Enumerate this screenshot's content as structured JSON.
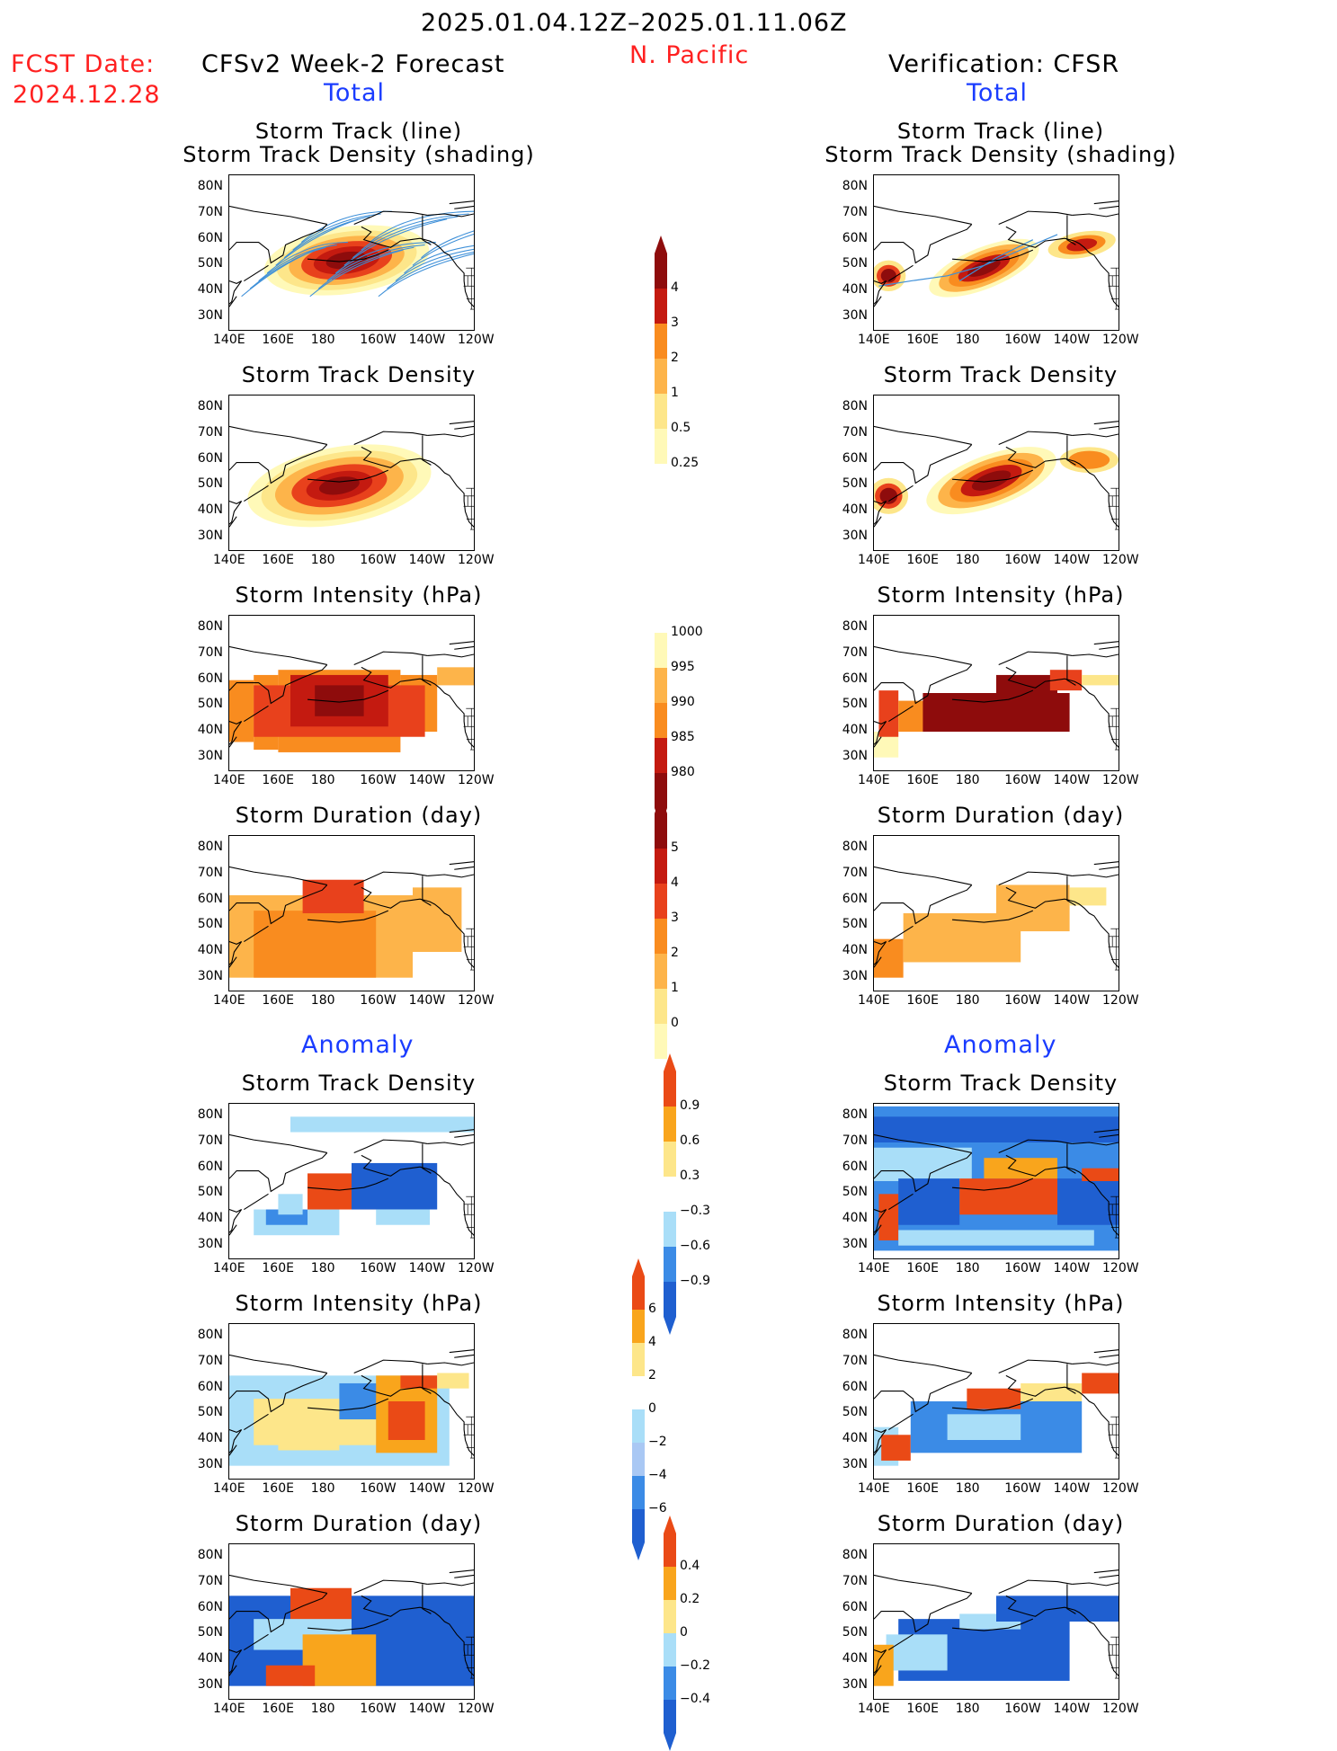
{
  "header": {
    "period": "2025.01.04.12Z–2025.01.11.06Z",
    "region": "N. Pacific",
    "fcst_label": "FCST Date:",
    "fcst_date": "2024.12.28",
    "left_title": "CFSv2 Week-2 Forecast",
    "right_title": "Verification: CFSR",
    "total_label": "Total",
    "anomaly_label": "Anomaly"
  },
  "panel_titles": {
    "track_1": "Storm Track (line)",
    "track_2": "Storm Track Density (shading)",
    "density": "Storm Track Density",
    "intensity": "Storm Intensity (hPa)",
    "duration": "Storm Duration (day)"
  },
  "axes": {
    "lat_labels": [
      "80N",
      "70N",
      "60N",
      "50N",
      "40N",
      "30N"
    ],
    "lon_labels": [
      "140E",
      "160E",
      "180",
      "160W",
      "140W",
      "120W"
    ]
  },
  "colorbars": {
    "density_total": [
      "4",
      "3",
      "2",
      "1",
      "0.5",
      "0.25"
    ],
    "intensity_total": [
      "1000",
      "995",
      "990",
      "985",
      "980"
    ],
    "duration_total": [
      "5",
      "4",
      "3",
      "2",
      "1",
      "0"
    ],
    "density_anom": [
      "0.9",
      "0.6",
      "0.3",
      "−0.3",
      "−0.6",
      "−0.9"
    ],
    "intensity_anom": [
      "6",
      "4",
      "2",
      "0",
      "−2",
      "−4",
      "−6"
    ],
    "duration_anom": [
      "0.4",
      "0.2",
      "0",
      "−0.2",
      "−0.4"
    ]
  },
  "colors": {
    "title_red": "#ff2020",
    "label_blue": "#1a3cff",
    "warm_scale": [
      "#fff9b8",
      "#fde68a",
      "#fdb44a",
      "#f98c1f",
      "#e8411c",
      "#c41a10",
      "#8e0c0c"
    ],
    "anom_scale": [
      "#1f5fd0",
      "#3b8be6",
      "#a9def8",
      "#ffffff",
      "#fde68a",
      "#f9a51c",
      "#ea4a16"
    ],
    "track_line": "#3d8fd8"
  }
}
